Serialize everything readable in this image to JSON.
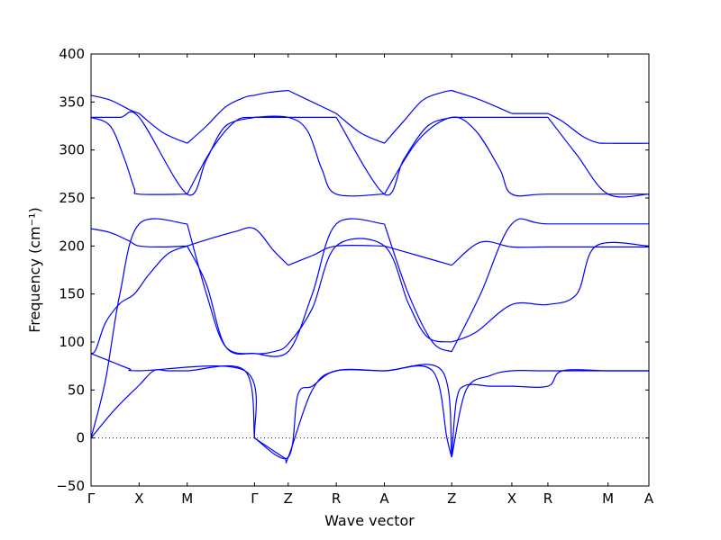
{
  "chart_data": {
    "type": "line",
    "title": "",
    "xlabel": "Wave vector",
    "ylabel": "Frequency (cm⁻¹)",
    "ylim": [
      -50,
      400
    ],
    "xlim": [
      0,
      11.6
    ],
    "y_ticks": [
      -50,
      0,
      50,
      100,
      150,
      200,
      250,
      300,
      350,
      400
    ],
    "y_tick_labels": [
      "−50",
      "0",
      "50",
      "100",
      "150",
      "200",
      "250",
      "300",
      "350",
      "400"
    ],
    "high_symmetry_points": [
      {
        "label": "Γ",
        "x": 0
      },
      {
        "label": "X",
        "x": 1
      },
      {
        "label": "M",
        "x": 2
      },
      {
        "label": "Γ",
        "x": 3.4
      },
      {
        "label": "Z",
        "x": 4.1
      },
      {
        "label": "R",
        "x": 5.1
      },
      {
        "label": "A",
        "x": 6.1
      },
      {
        "label": "Z",
        "x": 7.5
      },
      {
        "label": "X",
        "x": 8.75
      },
      {
        "label": "R",
        "x": 9.5
      },
      {
        "label": "M",
        "x": 10.75
      },
      {
        "label": "A",
        "x": 11.6
      }
    ],
    "zero_line": {
      "y": 0,
      "style": "dotted"
    },
    "grid": false,
    "legend": "none",
    "line_color": "#0000ff",
    "series": [
      {
        "x": [
          0,
          0.4,
          0.8,
          1
        ],
        "values": [
          357,
          352,
          342,
          338
        ]
      },
      {
        "x": [
          1,
          1.5,
          2
        ],
        "values": [
          338,
          318,
          307
        ]
      },
      {
        "x": [
          2,
          2.4,
          2.8,
          3.2,
          3.4
        ],
        "values": [
          307,
          325,
          345,
          355,
          357
        ]
      },
      {
        "x": [
          3.4,
          3.7,
          4.1
        ],
        "values": [
          357,
          360,
          362
        ]
      },
      {
        "x": [
          4.1,
          4.6,
          5.1
        ],
        "values": [
          362,
          350,
          338
        ]
      },
      {
        "x": [
          5.1,
          5.6,
          6.1
        ],
        "values": [
          338,
          318,
          307
        ]
      },
      {
        "x": [
          6.1,
          6.5,
          6.9,
          7.3,
          7.5
        ],
        "values": [
          307,
          330,
          352,
          360,
          362
        ]
      },
      {
        "x": [
          7.5,
          8.1,
          8.75
        ],
        "values": [
          362,
          352,
          338
        ]
      },
      {
        "x": [
          8.75,
          9.5
        ],
        "values": [
          338,
          338
        ]
      },
      {
        "x": [
          9.5,
          9.8,
          10.2,
          10.5,
          10.75,
          11.6
        ],
        "values": [
          338,
          330,
          315,
          308,
          307,
          307
        ]
      },
      {
        "x": [
          0,
          0.6,
          1,
          2,
          2.4,
          2.8,
          3.4
        ],
        "values": [
          334,
          334,
          334,
          254,
          290,
          325,
          334
        ]
      },
      {
        "x": [
          3.4,
          5.1
        ],
        "values": [
          334,
          334
        ]
      },
      {
        "x": [
          5.1,
          6.1,
          6.5,
          7,
          7.5
        ],
        "values": [
          334,
          254,
          290,
          325,
          334
        ]
      },
      {
        "x": [
          7.5,
          8.75,
          9.5
        ],
        "values": [
          334,
          334,
          334
        ]
      },
      {
        "x": [
          9.5,
          10.1,
          10.75,
          11.6
        ],
        "values": [
          334,
          295,
          254,
          254
        ]
      },
      {
        "x": [
          0,
          0.4,
          0.7,
          0.9,
          1,
          2
        ],
        "values": [
          334,
          325,
          290,
          260,
          254,
          254
        ]
      },
      {
        "x": [
          2,
          2.5,
          3,
          3.4,
          4.1,
          4.5,
          4.8,
          5.1,
          6.1
        ],
        "values": [
          254,
          300,
          330,
          334,
          334,
          320,
          280,
          254,
          254
        ]
      },
      {
        "x": [
          6.1,
          6.8,
          7.5,
          8,
          8.5,
          8.75,
          9.5,
          11.6
        ],
        "values": [
          254,
          310,
          334,
          320,
          280,
          254,
          254,
          254
        ]
      },
      {
        "x": [
          0,
          0.4,
          0.8,
          1,
          1.5,
          2
        ],
        "values": [
          218,
          214,
          205,
          200,
          199,
          200
        ]
      },
      {
        "x": [
          2,
          2.5,
          3,
          3.4,
          3.8,
          4.1
        ],
        "values": [
          200,
          208,
          215,
          218,
          195,
          180
        ]
      },
      {
        "x": [
          4.1,
          4.6,
          5.1,
          6.1
        ],
        "values": [
          180,
          190,
          200,
          200
        ]
      },
      {
        "x": [
          6.1,
          6.8,
          7.5
        ],
        "values": [
          200,
          190,
          180
        ]
      },
      {
        "x": [
          7.5,
          8.1,
          8.75,
          9.5,
          11.6
        ],
        "values": [
          180,
          204,
          199,
          199,
          199
        ]
      },
      {
        "x": [
          0,
          0.3,
          0.6,
          1,
          2
        ],
        "values": [
          0,
          60,
          150,
          223,
          223
        ]
      },
      {
        "x": [
          2,
          2.4,
          2.8,
          3.4
        ],
        "values": [
          223,
          150,
          95,
          88
        ]
      },
      {
        "x": [
          3.4,
          4.1,
          4.6,
          5.1,
          6.1
        ],
        "values": [
          88,
          90,
          150,
          223,
          223
        ]
      },
      {
        "x": [
          6.1,
          6.6,
          7.1,
          7.5
        ],
        "values": [
          223,
          150,
          100,
          90
        ]
      },
      {
        "x": [
          7.5,
          8.1,
          8.75,
          9.5,
          11.6
        ],
        "values": [
          90,
          150,
          223,
          223,
          223
        ]
      },
      {
        "x": [
          0,
          0.1,
          0.3,
          0.6,
          0.9,
          1.2,
          1.6,
          2
        ],
        "values": [
          88,
          92,
          120,
          140,
          150,
          170,
          192,
          200
        ]
      },
      {
        "x": [
          2,
          2.4,
          2.8,
          3.4,
          3.8,
          4.1,
          4.6,
          5.1,
          6.1,
          6.6,
          7,
          7.5
        ],
        "values": [
          200,
          160,
          95,
          88,
          90,
          98,
          135,
          200,
          200,
          140,
          105,
          100
        ]
      },
      {
        "x": [
          7.5,
          8,
          8.75,
          9.5,
          10.1,
          10.5,
          11.6
        ],
        "values": [
          100,
          110,
          139,
          139,
          150,
          200,
          200
        ]
      },
      {
        "x": [
          0,
          0.4,
          0.8,
          1,
          3.2,
          3.4
        ],
        "values": [
          88,
          80,
          72,
          70,
          70,
          0
        ]
      },
      {
        "x": [
          3.4,
          4,
          4.1,
          4.6,
          5.1,
          6.1,
          7.1,
          7.4,
          7.5
        ],
        "values": [
          0,
          -20,
          -20,
          50,
          70,
          70,
          70,
          0,
          -20
        ]
      },
      {
        "x": [
          7.5,
          7.8,
          8.3,
          8.75,
          9.5,
          11.6
        ],
        "values": [
          -20,
          50,
          65,
          70,
          70,
          70
        ]
      },
      {
        "x": [
          0,
          0.5,
          1,
          1.3,
          1.6,
          2,
          3.2,
          3.4
        ],
        "values": [
          0,
          30,
          55,
          70,
          70,
          70,
          70,
          0
        ]
      },
      {
        "x": [
          3.4,
          4.1,
          4.3,
          4.6,
          5.1,
          6.1,
          7.3,
          7.5
        ],
        "values": [
          0,
          -20,
          45,
          54,
          70,
          70,
          70,
          -20
        ]
      },
      {
        "x": [
          7.5,
          7.6,
          7.8,
          8.3,
          8.75,
          9.5,
          9.8,
          10.75,
          11.6
        ],
        "values": [
          -20,
          40,
          55,
          54,
          54,
          54,
          70,
          70,
          70
        ]
      }
    ]
  }
}
